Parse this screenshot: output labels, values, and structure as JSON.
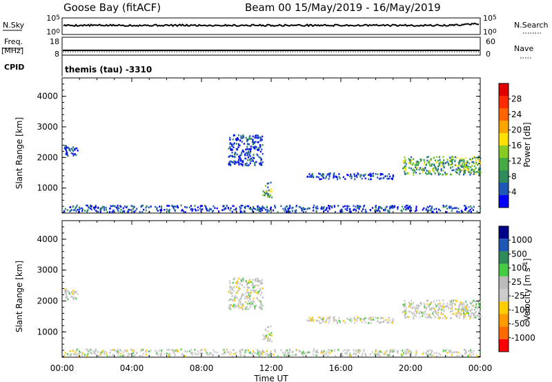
{
  "header": {
    "station": "Goose Bay (fitACF)",
    "beam_date": "Beam 00  15/May/2019 - 16/May/2019"
  },
  "summary": {
    "nsky": {
      "label": "N.Sky",
      "ticks": [
        {
          "base": "10",
          "exp": "5"
        },
        {
          "base": "10",
          "exp": "0"
        }
      ]
    },
    "nsearch": {
      "label": "N.Search",
      "ticks": [
        {
          "base": "10",
          "exp": "5"
        },
        {
          "base": "10",
          "exp": "0"
        }
      ]
    },
    "freq": {
      "label": "Freq.",
      "unit": "[MHz]",
      "ticks": [
        "18",
        "8"
      ]
    },
    "nave": {
      "label": "Nave",
      "ticks": [
        "60",
        "0"
      ]
    },
    "cpid": {
      "label": "CPID",
      "value": "themis (tau) -3310"
    }
  },
  "colors": {
    "power": [
      "#0000ff",
      "#1f57b7",
      "#2e8b57",
      "#44aa44",
      "#88cc22",
      "#ffe000",
      "#ffa500",
      "#ff6400",
      "#ff2a00",
      "#e00000"
    ],
    "velocity": [
      "#ff0000",
      "#ff6a00",
      "#ff9a00",
      "#ffcc00",
      "#cccccc",
      "#bbbbbb",
      "#44cc44",
      "#2e8b57",
      "#1f57b7",
      "#000088"
    ]
  },
  "chart_data": [
    {
      "type": "heatmap",
      "title": "Power",
      "xlabel": "",
      "ylabel": "Slant Range [km]",
      "xlim": [
        0,
        24
      ],
      "ylim": [
        180,
        4600
      ],
      "x_ticks": [
        "00:00",
        "04:00",
        "08:00",
        "12:00",
        "16:00",
        "20:00",
        "00:00"
      ],
      "y_ticks": [
        "1000",
        "2000",
        "3000",
        "4000"
      ],
      "colorbar": {
        "label": "Power [dB]",
        "ticks": [
          "4",
          "8",
          "12",
          "16",
          "20",
          "24",
          "28"
        ]
      },
      "regions": [
        {
          "t": [
            0.1,
            1.0
          ],
          "r": [
            2000,
            2350
          ],
          "level": "low"
        },
        {
          "t": [
            9.5,
            11.5
          ],
          "r": [
            1700,
            2700
          ],
          "level": "low"
        },
        {
          "t": [
            11.5,
            12.0
          ],
          "r": [
            650,
            1150
          ],
          "level": "medium"
        },
        {
          "t": [
            14.0,
            19.0
          ],
          "r": [
            1250,
            1450
          ],
          "level": "low"
        },
        {
          "t": [
            19.5,
            24.0
          ],
          "r": [
            1400,
            2000
          ],
          "level": "medium"
        },
        {
          "t": [
            0.0,
            24.0
          ],
          "r": [
            180,
            400
          ],
          "level": "low"
        }
      ]
    },
    {
      "type": "heatmap",
      "title": "Velocity",
      "xlabel": "Time UT",
      "ylabel": "Slant Range [km]",
      "xlim": [
        0,
        24
      ],
      "ylim": [
        180,
        4600
      ],
      "x_ticks": [
        "00:00",
        "04:00",
        "08:00",
        "12:00",
        "16:00",
        "20:00",
        "00:00"
      ],
      "y_ticks": [
        "1000",
        "2000",
        "3000",
        "4000"
      ],
      "colorbar": {
        "label": "Velocity [m s",
        "label_exp": "-1",
        "label_end": "]",
        "ticks": [
          "-1000",
          "-500",
          "-100",
          "-25",
          "25",
          "100",
          "500",
          "1000"
        ]
      },
      "regions": [
        {
          "t": [
            0.1,
            1.0
          ],
          "r": [
            2000,
            2350
          ],
          "level": "near-zero"
        },
        {
          "t": [
            9.5,
            11.5
          ],
          "r": [
            1700,
            2700
          ],
          "level": "near-zero"
        },
        {
          "t": [
            11.5,
            12.0
          ],
          "r": [
            650,
            1150
          ],
          "level": "near-zero"
        },
        {
          "t": [
            14.0,
            19.0
          ],
          "r": [
            1250,
            1450
          ],
          "level": "near-zero"
        },
        {
          "t": [
            19.5,
            24.0
          ],
          "r": [
            1400,
            2000
          ],
          "level": "near-zero"
        },
        {
          "t": [
            0.0,
            24.0
          ],
          "r": [
            180,
            400
          ],
          "level": "near-zero"
        }
      ]
    }
  ]
}
